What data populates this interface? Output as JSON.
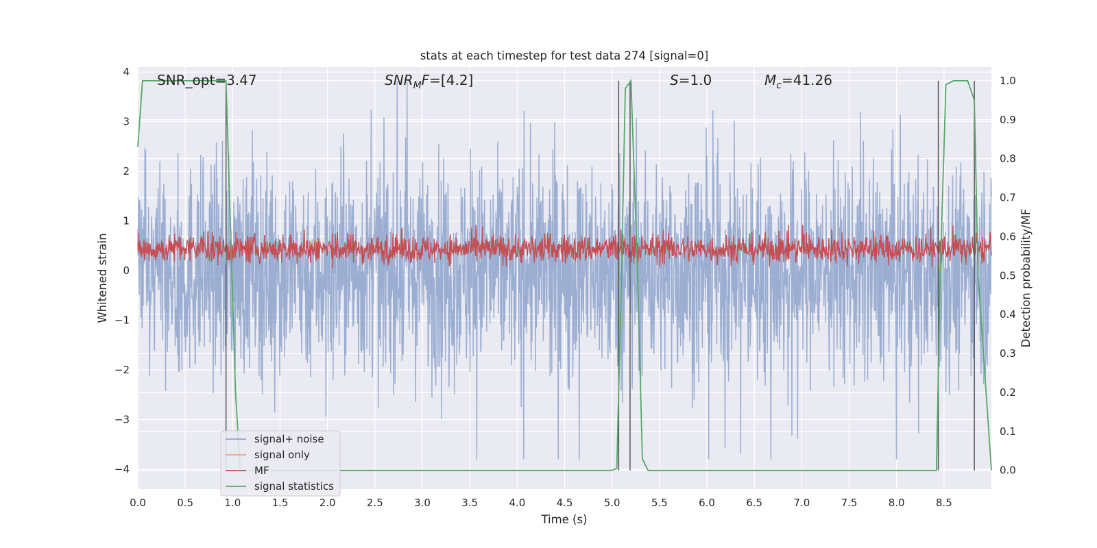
{
  "chart_data": {
    "type": "line",
    "title": "stats at each timestep for test data 274 [signal=0]",
    "xlabel": "Time (s)",
    "ylabel": "Whitened strain",
    "y2label": "Detection probability/MF",
    "xlim": [
      0.0,
      9.0
    ],
    "ylim": [
      -4.4,
      4.1
    ],
    "y2lim": [
      -0.048,
      1.035
    ],
    "x_ticks": [
      "0.0",
      "0.5",
      "1.0",
      "1.5",
      "2.0",
      "2.5",
      "3.0",
      "3.5",
      "4.0",
      "4.5",
      "5.0",
      "5.5",
      "6.0",
      "6.5",
      "7.0",
      "7.5",
      "8.0",
      "8.5"
    ],
    "y_ticks": [
      "4",
      "3",
      "2",
      "1",
      "0",
      "−1",
      "−2",
      "−3",
      "−4"
    ],
    "y2_ticks": [
      "1.0",
      "0.9",
      "0.8",
      "0.7",
      "0.6",
      "0.5",
      "0.4",
      "0.3",
      "0.2",
      "0.1",
      "0.0"
    ],
    "grid": true,
    "legend_position": "lower-left",
    "annotations": {
      "snr_opt": "SNR_opt=3.47",
      "snr_mf": "SNRMF=[4.2]",
      "s_value": "S=1.0",
      "mc_value": "Mc=41.26"
    },
    "series": [
      {
        "name": "signal+ noise",
        "color": "#8da3cc",
        "axis": "left",
        "kind": "noise",
        "amplitude_range": [
          -3.8,
          3.8
        ]
      },
      {
        "name": "signal only",
        "color": "#e8a58a",
        "axis": "left",
        "values": []
      },
      {
        "name": "MF",
        "color": "#c44e52",
        "axis": "right",
        "kind": "noise",
        "amplitude_range": [
          0.53,
          0.62
        ]
      },
      {
        "name": "signal statistics",
        "color": "#55a868",
        "axis": "right",
        "x": [
          0.0,
          0.05,
          0.12,
          0.5,
          0.93,
          0.98,
          1.03,
          1.08,
          1.2,
          2.0,
          3.0,
          4.0,
          4.6,
          5.0,
          5.05,
          5.1,
          5.14,
          5.2,
          5.27,
          5.32,
          5.38,
          6.0,
          7.0,
          8.0,
          8.42,
          8.46,
          8.52,
          8.6,
          8.75,
          8.82,
          8.86,
          9.0
        ],
        "y": [
          0.83,
          1.0,
          1.0,
          1.0,
          1.0,
          0.6,
          0.2,
          0.0,
          0.0,
          0.0,
          0.0,
          0.0,
          0.0,
          0.0,
          0.005,
          0.5,
          0.98,
          1.0,
          0.5,
          0.03,
          0.0,
          0.0,
          0.0,
          0.0,
          0.0,
          0.5,
          0.99,
          1.0,
          1.0,
          0.95,
          0.5,
          0.0
        ]
      }
    ],
    "vertical_lines_x": [
      0.93,
      5.07,
      5.19,
      8.44,
      8.82
    ],
    "vertical_lines_color": "#555555"
  }
}
